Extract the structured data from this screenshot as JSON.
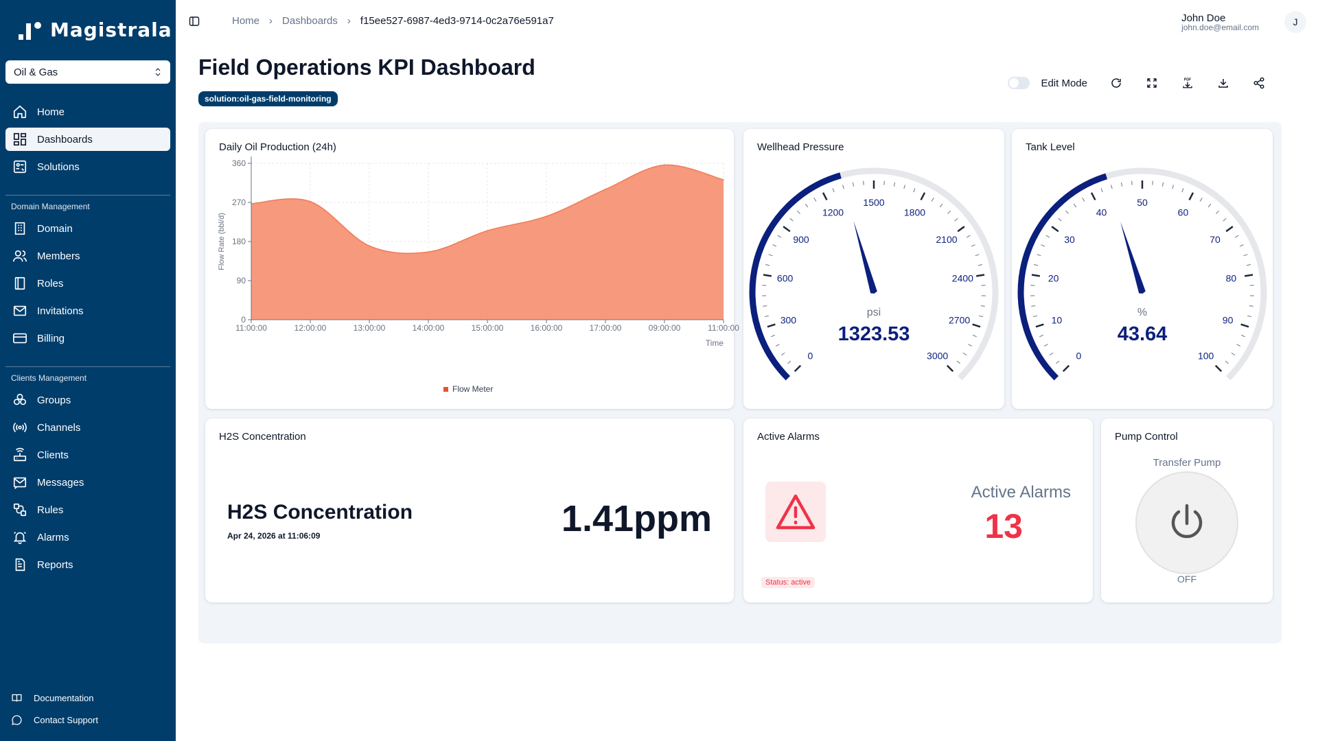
{
  "app": {
    "name": "Magistrala",
    "domain": "Oil & Gas"
  },
  "sidebar": {
    "items": [
      {
        "label": "Home",
        "icon": "home-icon"
      },
      {
        "label": "Dashboards",
        "icon": "dashboard-icon",
        "active": true
      },
      {
        "label": "Solutions",
        "icon": "solutions-icon"
      }
    ],
    "domain_section": "Domain Management",
    "domain_items": [
      {
        "label": "Domain",
        "icon": "domain-icon"
      },
      {
        "label": "Members",
        "icon": "members-icon"
      },
      {
        "label": "Roles",
        "icon": "roles-icon"
      },
      {
        "label": "Invitations",
        "icon": "mail-icon"
      },
      {
        "label": "Billing",
        "icon": "card-icon"
      }
    ],
    "clients_section": "Clients Management",
    "clients_items": [
      {
        "label": "Groups",
        "icon": "groups-icon"
      },
      {
        "label": "Channels",
        "icon": "channels-icon"
      },
      {
        "label": "Clients",
        "icon": "clients-icon"
      },
      {
        "label": "Messages",
        "icon": "messages-icon"
      },
      {
        "label": "Rules",
        "icon": "rules-icon"
      },
      {
        "label": "Alarms",
        "icon": "bell-icon"
      },
      {
        "label": "Reports",
        "icon": "reports-icon"
      }
    ],
    "footer": [
      {
        "label": "Documentation",
        "icon": "book-icon"
      },
      {
        "label": "Contact Support",
        "icon": "chat-icon"
      }
    ]
  },
  "breadcrumb": [
    "Home",
    "Dashboards",
    "f15ee527-6987-4ed3-9714-0c2a76e591a7"
  ],
  "user": {
    "name": "John Doe",
    "email": "john.doe@email.com",
    "initial": "J"
  },
  "page": {
    "title": "Field Operations KPI Dashboard",
    "tag": "solution:oil-gas-field-monitoring"
  },
  "toolbar": {
    "edit_mode": "Edit Mode",
    "edit_on": false,
    "buttons": [
      "refresh-icon",
      "fullscreen-icon",
      "pdf-export-icon",
      "download-icon",
      "share-icon"
    ],
    "pdf_label": "PDF"
  },
  "widgets": {
    "production": {
      "title": "Daily Oil Production (24h)"
    },
    "wellhead": {
      "title": "Wellhead Pressure",
      "unit": "psi",
      "value": "1323.53",
      "num": 1323.53,
      "min": 0,
      "max": 3000,
      "ticks": [
        "0",
        "300",
        "600",
        "900",
        "1200",
        "1500",
        "1800",
        "2100",
        "2400",
        "2700",
        "3000"
      ],
      "color": "#0b1f7d"
    },
    "tank": {
      "title": "Tank Level",
      "unit": "%",
      "value": "43.64",
      "num": 43.64,
      "min": 0,
      "max": 100,
      "ticks": [
        "0",
        "10",
        "20",
        "30",
        "40",
        "50",
        "60",
        "70",
        "80",
        "90",
        "100"
      ],
      "color": "#0b1f7d"
    },
    "h2s": {
      "title": "H2S Concentration",
      "name": "H2S Concentration",
      "date": "Apr 24, 2026 at 11:06:09",
      "value": "1.41ppm"
    },
    "alarms": {
      "title": "Active Alarms",
      "label": "Active Alarms",
      "value": "13",
      "status": "Status: active",
      "color": "#ef3347"
    },
    "pump": {
      "title": "Pump Control",
      "name": "Transfer Pump",
      "state": "OFF"
    }
  },
  "chart_data": {
    "type": "area",
    "x": [
      "11:00:00",
      "12:00:00",
      "13:00:00",
      "14:00:00",
      "15:00:00",
      "16:00:00",
      "17:00:00",
      "09:00:00",
      "11:00:00"
    ],
    "series": [
      {
        "name": "Flow Meter",
        "values": [
          267,
          272,
          170,
          156,
          205,
          238,
          300,
          356,
          322
        ],
        "color": "#f59475"
      }
    ],
    "ylabel": "Flow Rate (bbl/d)",
    "xlabel": "Time",
    "yticks": [
      0,
      90,
      180,
      270,
      360
    ],
    "ylim": [
      0,
      360
    ],
    "grid": true,
    "legend": "bottom"
  }
}
